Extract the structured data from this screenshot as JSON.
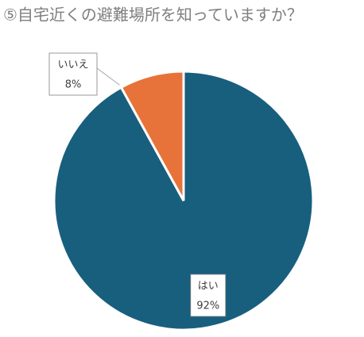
{
  "chart_data": {
    "type": "pie",
    "title": "⑤自宅近くの避難場所を知っていますか？",
    "categories": [
      "はい",
      "いいえ"
    ],
    "values": [
      92,
      8
    ],
    "value_labels": [
      "92%",
      "8%"
    ],
    "colors": [
      "#185f7e",
      "#e8733a"
    ]
  }
}
